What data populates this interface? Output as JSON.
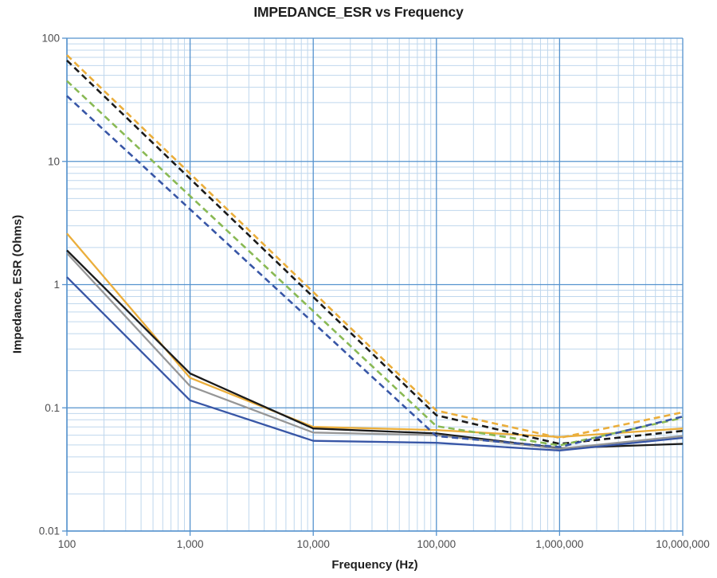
{
  "chart_data": {
    "type": "line",
    "title": "IMPEDANCE_ESR vs Frequency",
    "x_scale": "log",
    "y_scale": "log",
    "xlim": [
      100,
      10000000
    ],
    "ylim": [
      0.01,
      100
    ],
    "grid": "log major+minor, on",
    "legend": "none",
    "colors": {
      "background": "#ffffff",
      "grid_minor": "#bfd7ed",
      "grid_major": "#5592ce",
      "axis_line": "#5592ce",
      "tick_text": "#4d4d4f",
      "title_text": "#1e1e1e",
      "gold": "#ebae3b",
      "black": "#1a1a1a",
      "gray": "#969696",
      "blue": "#3856a6",
      "green": "#89b954"
    },
    "x_axis": {
      "label": "Frequency (Hz)",
      "ticks": [
        {
          "value": 100,
          "label": "100"
        },
        {
          "value": 1000,
          "label": "1,000"
        },
        {
          "value": 10000,
          "label": "10,000"
        },
        {
          "value": 100000,
          "label": "100,000"
        },
        {
          "value": 1000000,
          "label": "1,000,000"
        },
        {
          "value": 10000000,
          "label": "10,000,000"
        }
      ]
    },
    "y_axis": {
      "label": "Impedance, ESR (Ohms)",
      "ticks": [
        {
          "value": 100,
          "label": "100"
        },
        {
          "value": 10,
          "label": "10"
        },
        {
          "value": 1,
          "label": "1"
        },
        {
          "value": 0.1,
          "label": "0.1"
        },
        {
          "value": 0.01,
          "label": "0.01"
        }
      ]
    },
    "series": [
      {
        "name": "impedance-solid-gold",
        "style": "solid",
        "color_key": "gold",
        "points": [
          [
            100,
            2.6
          ],
          [
            1000,
            0.175
          ],
          [
            10000,
            0.07
          ],
          [
            100000,
            0.066
          ],
          [
            1000000,
            0.058
          ],
          [
            10000000,
            0.068
          ]
        ]
      },
      {
        "name": "impedance-solid-black",
        "style": "solid",
        "color_key": "black",
        "points": [
          [
            100,
            1.9
          ],
          [
            1000,
            0.19
          ],
          [
            10000,
            0.068
          ],
          [
            100000,
            0.062
          ],
          [
            1000000,
            0.047
          ],
          [
            10000000,
            0.051
          ]
        ]
      },
      {
        "name": "impedance-solid-gray",
        "style": "solid",
        "color_key": "gray",
        "points": [
          [
            100,
            1.8
          ],
          [
            1000,
            0.15
          ],
          [
            10000,
            0.063
          ],
          [
            100000,
            0.06
          ],
          [
            1000000,
            0.0465
          ],
          [
            10000000,
            0.059
          ]
        ]
      },
      {
        "name": "impedance-solid-blue",
        "style": "solid",
        "color_key": "blue",
        "points": [
          [
            100,
            1.15
          ],
          [
            1000,
            0.115
          ],
          [
            10000,
            0.054
          ],
          [
            100000,
            0.052
          ],
          [
            1000000,
            0.045
          ],
          [
            10000000,
            0.057
          ]
        ]
      },
      {
        "name": "esr-dashed-gold",
        "style": "dashed",
        "color_key": "gold",
        "points": [
          [
            100,
            73
          ],
          [
            100000,
            0.095
          ],
          [
            1000000,
            0.057
          ],
          [
            10000000,
            0.092
          ]
        ]
      },
      {
        "name": "esr-dashed-black",
        "style": "dashed",
        "color_key": "black",
        "points": [
          [
            100,
            66
          ],
          [
            100000,
            0.087
          ],
          [
            1000000,
            0.051
          ],
          [
            10000000,
            0.065
          ]
        ]
      },
      {
        "name": "esr-dashed-green",
        "style": "dashed",
        "color_key": "green",
        "points": [
          [
            100,
            45
          ],
          [
            100000,
            0.071
          ],
          [
            1000000,
            0.0495
          ],
          [
            10000000,
            0.083
          ]
        ]
      },
      {
        "name": "esr-dashed-blue",
        "style": "dashed",
        "color_key": "blue",
        "points": [
          [
            100,
            34
          ],
          [
            100000,
            0.059
          ],
          [
            1000000,
            0.048
          ],
          [
            10000000,
            0.085
          ]
        ]
      }
    ]
  }
}
